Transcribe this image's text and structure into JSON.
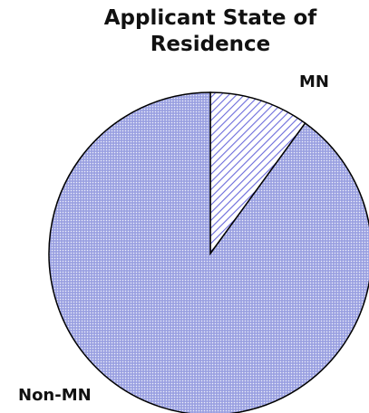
{
  "chart_data": {
    "type": "pie",
    "title": "Applicant State of Residence",
    "categories": [
      "MN",
      "Non-MN"
    ],
    "values": [
      10,
      90
    ],
    "colors": [
      "#6a6adb",
      "#a9afe6"
    ]
  }
}
